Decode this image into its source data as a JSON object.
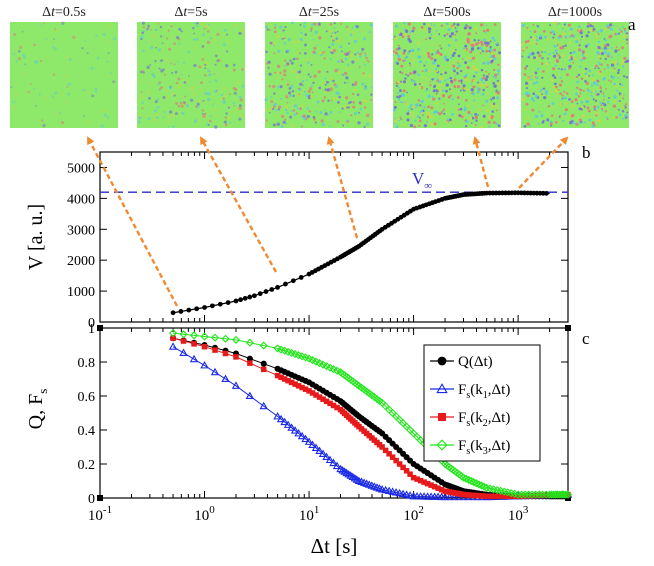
{
  "panel_labels": {
    "a": "a",
    "b": "b",
    "c": "c"
  },
  "snapshots": [
    {
      "label": "Δt=0.5s",
      "prefix": "Δ",
      "tvar": "t",
      "value": "=0.5s",
      "disorder": 0.05,
      "target_dt": 0.5
    },
    {
      "label": "Δt=5s",
      "prefix": "Δ",
      "tvar": "t",
      "value": "=5s",
      "disorder": 0.35,
      "target_dt": 5
    },
    {
      "label": "Δt=25s",
      "prefix": "Δ",
      "tvar": "t",
      "value": "=25s",
      "disorder": 0.6,
      "target_dt": 25
    },
    {
      "label": "Δt=500s",
      "prefix": "Δ",
      "tvar": "t",
      "value": "=500s",
      "disorder": 0.9,
      "target_dt": 500
    },
    {
      "label": "Δt=1000s",
      "prefix": "Δ",
      "tvar": "t",
      "value": "=1000s",
      "disorder": 0.85,
      "target_dt": 1000
    }
  ],
  "colors": {
    "snapshot_bg": "#8ee86a",
    "snapshot_dots": [
      "#6f6fd8",
      "#e07a7a",
      "#c8d84a",
      "#5cc8e0"
    ],
    "arrow": "#f08a30",
    "v_inf_line": "#2a2ac8",
    "v_curve": "#000000",
    "series_Q": "#000000",
    "series_k1": "#1a2ae6",
    "series_k2": "#e61a1a",
    "series_k3": "#22e61a"
  },
  "chart_data": [
    {
      "type": "line",
      "panel": "b",
      "ylabel": "V [a. u.]",
      "xscale": "log",
      "xlim": [
        0.1,
        3000
      ],
      "ylim": [
        0,
        5500
      ],
      "yticks": [
        0,
        1000,
        2000,
        3000,
        4000,
        5000
      ],
      "v_inf": {
        "label": "V∞",
        "main": "V",
        "sub": "∞",
        "value": 4200
      },
      "series": [
        {
          "name": "V",
          "x": [
            0.5,
            1,
            2,
            3,
            5,
            10,
            20,
            30,
            50,
            100,
            200,
            300,
            500,
            1000,
            2000
          ],
          "y": [
            300,
            470,
            680,
            850,
            1120,
            1550,
            2100,
            2450,
            3000,
            3650,
            4000,
            4120,
            4170,
            4180,
            4160
          ]
        }
      ]
    },
    {
      "type": "line",
      "panel": "c",
      "ylabel": "Q, Fs",
      "ylabel_main": "Q, F",
      "ylabel_sub": "s",
      "xlabel": "Δt [s]",
      "xscale": "log",
      "xlim": [
        0.1,
        3000
      ],
      "ylim": [
        0,
        1
      ],
      "yticks": [
        0,
        0.2,
        0.4,
        0.6,
        0.8,
        1
      ],
      "ytick_labels": [
        "0",
        "0.2",
        "0.4",
        "0.6",
        "0.8",
        "1"
      ],
      "xticks": [
        0.1,
        1,
        10,
        100,
        1000
      ],
      "xtick_labels": [
        {
          "base": "10",
          "exp": "-1"
        },
        {
          "base": "10",
          "exp": "0"
        },
        {
          "base": "10",
          "exp": "1"
        },
        {
          "base": "10",
          "exp": "2"
        },
        {
          "base": "10",
          "exp": "3"
        }
      ],
      "series": [
        {
          "name": "Q(Δt)",
          "key": "Q",
          "marker": "circle",
          "x": [
            0.5,
            1,
            2,
            5,
            10,
            20,
            30,
            50,
            100,
            200,
            300,
            500,
            1000,
            2000,
            3000
          ],
          "y": [
            0.94,
            0.9,
            0.85,
            0.76,
            0.68,
            0.57,
            0.48,
            0.38,
            0.2,
            0.08,
            0.04,
            0.02,
            0.01,
            0.01,
            0.01
          ]
        },
        {
          "name": "Fs(k1,Δt)",
          "key": "k1",
          "marker": "triangle",
          "x": [
            0.5,
            1,
            2,
            5,
            10,
            20,
            30,
            50,
            100,
            200,
            500,
            1000,
            3000
          ],
          "y": [
            0.89,
            0.78,
            0.66,
            0.48,
            0.33,
            0.17,
            0.1,
            0.05,
            0.01,
            0.005,
            0.005,
            0.01,
            0.02
          ]
        },
        {
          "name": "Fs(k2,Δt)",
          "key": "k2",
          "marker": "square",
          "x": [
            0.5,
            1,
            2,
            5,
            10,
            20,
            30,
            50,
            100,
            200,
            300,
            500,
            1000,
            3000
          ],
          "y": [
            0.94,
            0.89,
            0.83,
            0.72,
            0.63,
            0.52,
            0.42,
            0.3,
            0.12,
            0.04,
            0.02,
            0.01,
            0.01,
            0.02
          ]
        },
        {
          "name": "Fs(k3,Δt)",
          "key": "k3",
          "marker": "diamond",
          "x": [
            0.5,
            1,
            2,
            5,
            10,
            20,
            30,
            50,
            100,
            200,
            300,
            500,
            1000,
            2000,
            3000
          ],
          "y": [
            0.97,
            0.95,
            0.93,
            0.88,
            0.82,
            0.74,
            0.66,
            0.56,
            0.38,
            0.2,
            0.12,
            0.06,
            0.02,
            0.02,
            0.02
          ]
        }
      ],
      "legend": {
        "placement": "right",
        "entries": [
          {
            "key": "Q",
            "main": "Q(Δt)",
            "sub": "",
            "rest": ""
          },
          {
            "key": "k1",
            "main": "F",
            "sub": "s",
            "rest": "(k1,Δt)",
            "k": "k",
            "ksub": "1",
            "tail": ",Δt)"
          },
          {
            "key": "k2",
            "main": "F",
            "sub": "s",
            "rest": "(k2,Δt)",
            "k": "k",
            "ksub": "2",
            "tail": ",Δt)"
          },
          {
            "key": "k3",
            "main": "F",
            "sub": "s",
            "rest": "(k3,Δt)",
            "k": "k",
            "ksub": "3",
            "tail": ",Δt)"
          }
        ]
      }
    }
  ]
}
